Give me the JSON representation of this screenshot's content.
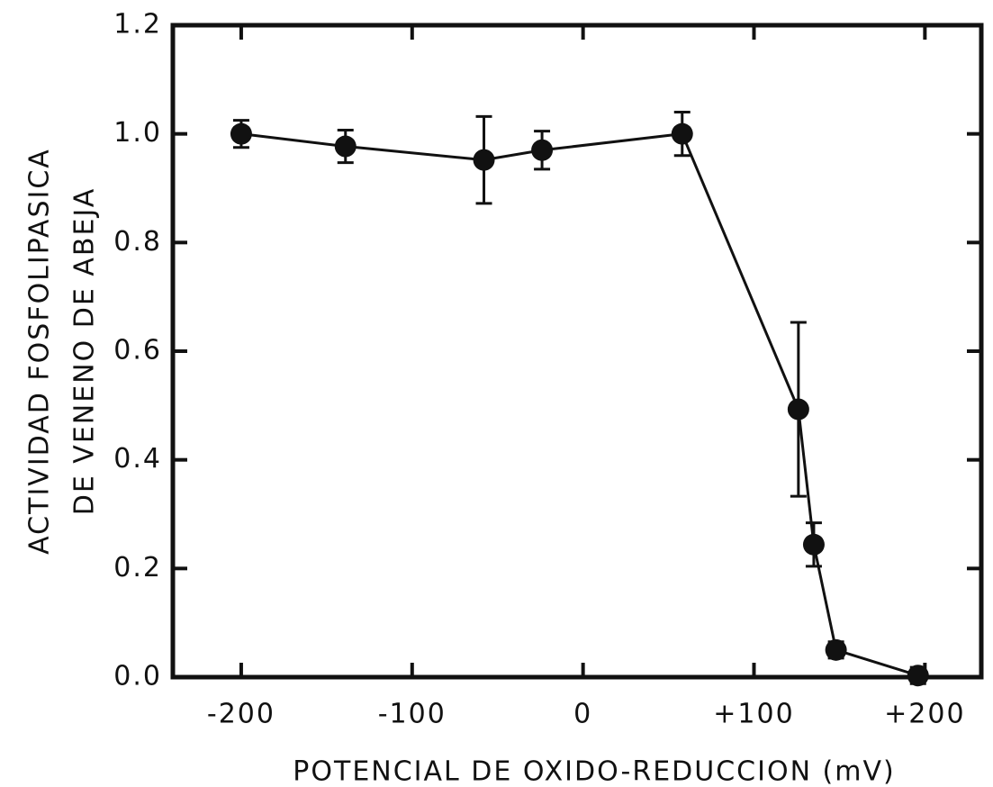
{
  "chart_data": {
    "type": "line",
    "xlabel": "POTENCIAL DE OXIDO-REDUCCION (mV)",
    "ylabel": [
      "ACTIVIDAD FOSFOLIPASICA",
      "DE VENENO DE ABEJA"
    ],
    "x": [
      -200,
      -139,
      -58,
      -24,
      58,
      126,
      135,
      148,
      196
    ],
    "series": [
      {
        "color": "#111111",
        "values": [
          1.0,
          0.977,
          0.952,
          0.97,
          1.0,
          0.493,
          0.244,
          0.05,
          0.003
        ],
        "errors": [
          0.025,
          0.03,
          0.08,
          0.035,
          0.04,
          0.16,
          0.04,
          0.015,
          0.015
        ]
      }
    ],
    "xlim": [
      -240,
      233
    ],
    "ylim": [
      0,
      1.2
    ],
    "xticks": [
      -200,
      -100,
      0,
      {
        "value": 100,
        "label": "+100"
      },
      {
        "value": 200,
        "label": "+200"
      }
    ],
    "yticks": [
      {
        "value": 0,
        "label": "0.0"
      },
      0.2,
      0.4,
      0.6,
      0.8,
      {
        "value": 1,
        "label": "1.0"
      },
      1.2
    ]
  }
}
